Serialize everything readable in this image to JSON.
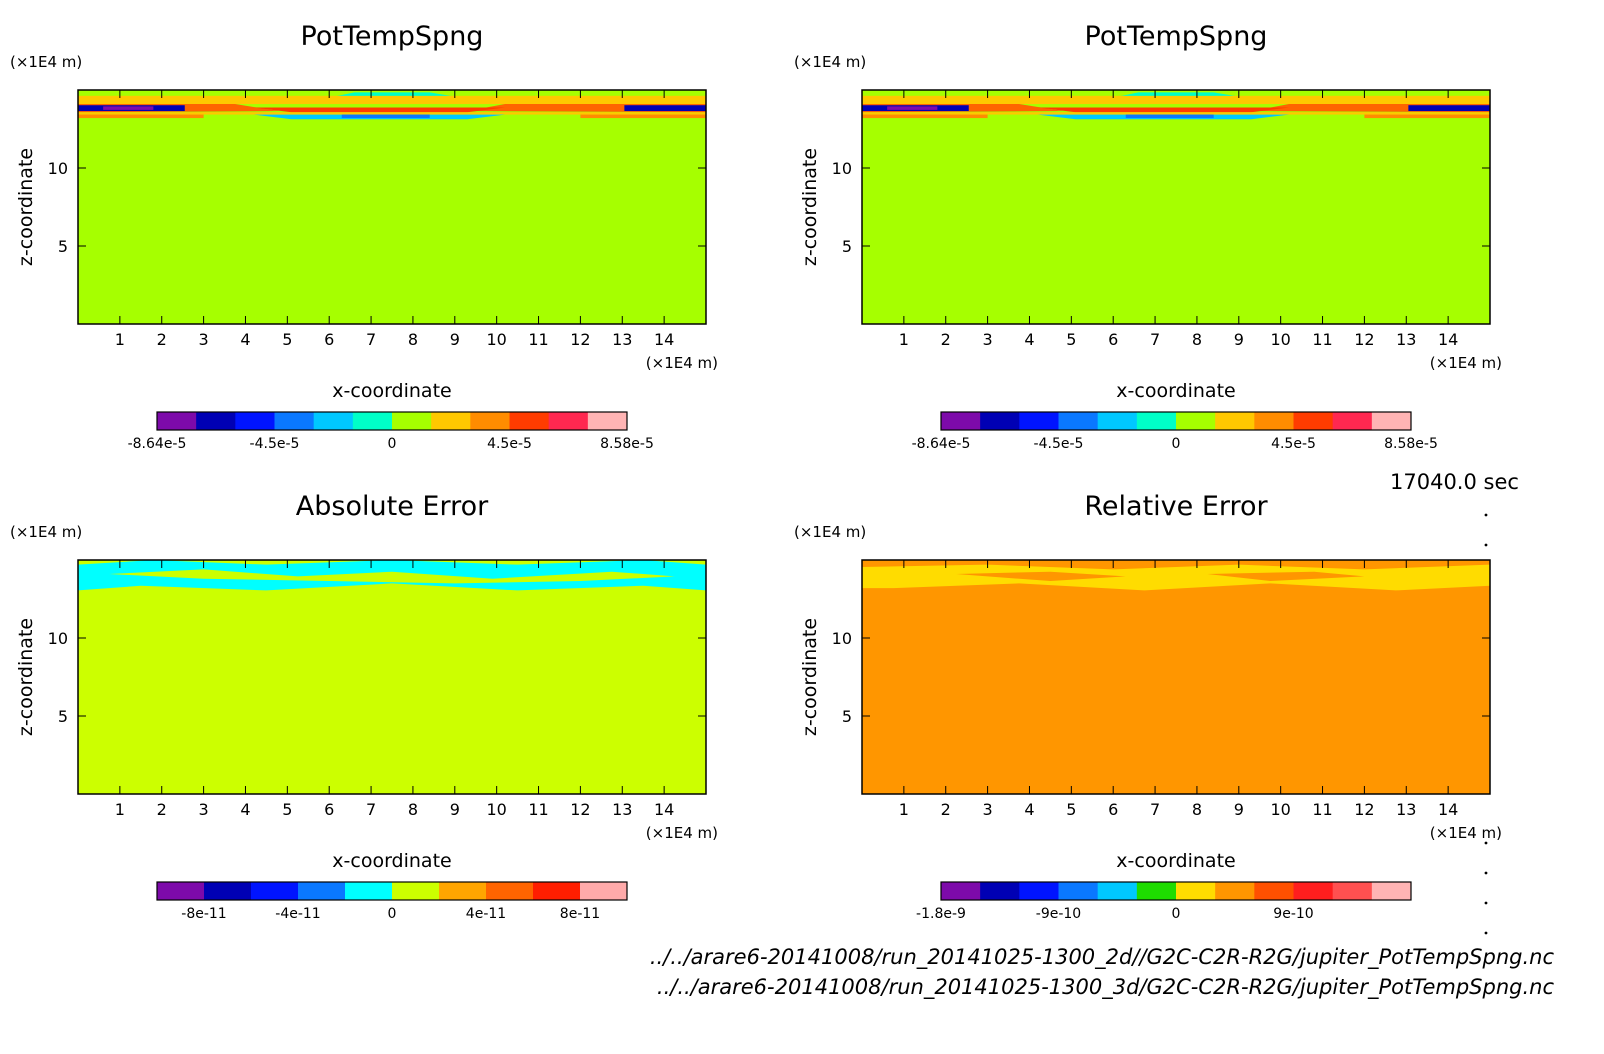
{
  "time_label": "17040.0 sec",
  "footer": {
    "line1": "../../arare6-20141008/run_20141025-1300_2d//G2C-C2R-R2G/jupiter_PotTempSpng.nc",
    "line2": "../../arare6-20141008/run_20141025-1300_3d/G2C-C2R-R2G/jupiter_PotTempSpng.nc"
  },
  "chart_data": [
    {
      "type": "heatmap",
      "title": "PotTempSpng",
      "xlabel": "x-coordinate",
      "ylabel": "z-coordinate",
      "x_unit": "(×1E4 m)",
      "y_unit": "(×1E4 m)",
      "xlim": [
        0,
        15
      ],
      "ylim": [
        0,
        15
      ],
      "x_ticks": [
        "1",
        "2",
        "3",
        "4",
        "5",
        "6",
        "7",
        "8",
        "9",
        "10",
        "11",
        "12",
        "13",
        "14"
      ],
      "y_ticks": [
        "5",
        "10"
      ],
      "background_color": "#a6ff00",
      "colorbar": {
        "colors": [
          "#7d0aaa",
          "#0000b4",
          "#0014ff",
          "#0a78ff",
          "#00c8ff",
          "#00ffc8",
          "#a6ff00",
          "#ffc800",
          "#ff8c00",
          "#ff3c00",
          "#ff2850",
          "#ffb4b4"
        ],
        "tick_labels": [
          "-8.64e-5",
          "-4.5e-5",
          "0",
          "4.5e-5",
          "8.58e-5"
        ]
      }
    },
    {
      "type": "heatmap",
      "title": "PotTempSpng",
      "xlabel": "x-coordinate",
      "ylabel": "z-coordinate",
      "x_unit": "(×1E4 m)",
      "y_unit": "(×1E4 m)",
      "xlim": [
        0,
        15
      ],
      "ylim": [
        0,
        15
      ],
      "x_ticks": [
        "1",
        "2",
        "3",
        "4",
        "5",
        "6",
        "7",
        "8",
        "9",
        "10",
        "11",
        "12",
        "13",
        "14"
      ],
      "y_ticks": [
        "5",
        "10"
      ],
      "background_color": "#a6ff00",
      "colorbar": {
        "colors": [
          "#7d0aaa",
          "#0000b4",
          "#0014ff",
          "#0a78ff",
          "#00c8ff",
          "#00ffc8",
          "#a6ff00",
          "#ffc800",
          "#ff8c00",
          "#ff3c00",
          "#ff2850",
          "#ffb4b4"
        ],
        "tick_labels": [
          "-8.64e-5",
          "-4.5e-5",
          "0",
          "4.5e-5",
          "8.58e-5"
        ]
      }
    },
    {
      "type": "heatmap",
      "title": "Absolute Error",
      "xlabel": "x-coordinate",
      "ylabel": "z-coordinate",
      "x_unit": "(×1E4 m)",
      "y_unit": "(×1E4 m)",
      "xlim": [
        0,
        15
      ],
      "ylim": [
        0,
        15
      ],
      "x_ticks": [
        "1",
        "2",
        "3",
        "4",
        "5",
        "6",
        "7",
        "8",
        "9",
        "10",
        "11",
        "12",
        "13",
        "14"
      ],
      "y_ticks": [
        "5",
        "10"
      ],
      "background_color": "#ccff00",
      "colorbar": {
        "colors": [
          "#7d0aaa",
          "#0000b4",
          "#0014ff",
          "#0a78ff",
          "#00ffff",
          "#ccff00",
          "#ffa500",
          "#ff6400",
          "#ff1e00",
          "#ffaaaa"
        ],
        "tick_labels": [
          "-8e-11",
          "-4e-11",
          "0",
          "4e-11",
          "8e-11"
        ]
      }
    },
    {
      "type": "heatmap",
      "title": "Relative Error",
      "xlabel": "x-coordinate",
      "ylabel": "z-coordinate",
      "x_unit": "(×1E4 m)",
      "y_unit": "(×1E4 m)",
      "xlim": [
        0,
        15
      ],
      "ylim": [
        0,
        15
      ],
      "x_ticks": [
        "1",
        "2",
        "3",
        "4",
        "5",
        "6",
        "7",
        "8",
        "9",
        "10",
        "11",
        "12",
        "13",
        "14"
      ],
      "y_ticks": [
        "5",
        "10"
      ],
      "background_color": "#ff9600",
      "colorbar": {
        "colors": [
          "#7d0aaa",
          "#0000b4",
          "#0014ff",
          "#0a78ff",
          "#00c8ff",
          "#1edc00",
          "#ffdc00",
          "#ff9600",
          "#ff5000",
          "#ff1e1e",
          "#ff5050",
          "#ffb4b4"
        ],
        "tick_labels": [
          "-1.8e-9",
          "-9e-10",
          "0",
          "9e-10"
        ]
      }
    }
  ]
}
